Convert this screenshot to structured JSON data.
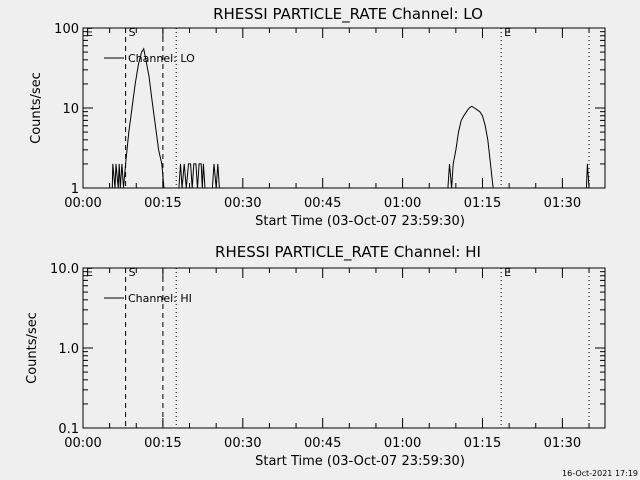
{
  "chart_data": [
    {
      "type": "line",
      "title": "RHESSI PARTICLE_RATE Channel: LO",
      "xlabel": "Start Time (03-Oct-07 23:59:30)",
      "ylabel": "Counts/sec",
      "yscale": "log",
      "ylim": [
        1,
        100
      ],
      "xlim_minutes": [
        0,
        98
      ],
      "x_ticks": [
        "00:00",
        "00:15",
        "00:30",
        "00:45",
        "01:00",
        "01:15",
        "01:30"
      ],
      "y_ticks": [
        "1",
        "10",
        "100"
      ],
      "legend": {
        "label": "Channel: LO",
        "position": "top-left"
      },
      "markers": [
        {
          "label": "E",
          "style": "dotted",
          "x_minutes": 0.0
        },
        {
          "label": "S",
          "style": "dashed",
          "x_minutes": 8.0
        },
        {
          "label": "",
          "style": "dashed",
          "x_minutes": 15.0
        },
        {
          "label": "",
          "style": "dotted",
          "x_minutes": 17.5
        },
        {
          "label": "E",
          "style": "dotted",
          "x_minutes": 78.5
        },
        {
          "label": "",
          "style": "dotted",
          "x_minutes": 95.0
        }
      ],
      "series": [
        {
          "name": "Channel: LO",
          "points": [
            [
              5.5,
              1
            ],
            [
              5.6,
              2
            ],
            [
              6.0,
              1
            ],
            [
              6.2,
              2
            ],
            [
              6.6,
              1
            ],
            [
              6.8,
              2
            ],
            [
              7.0,
              1
            ],
            [
              7.3,
              2
            ],
            [
              7.6,
              1
            ],
            [
              8.0,
              2
            ],
            [
              8.6,
              5
            ],
            [
              9.2,
              10
            ],
            [
              9.8,
              20
            ],
            [
              10.4,
              35
            ],
            [
              11.0,
              50
            ],
            [
              11.4,
              55
            ],
            [
              11.8,
              40
            ],
            [
              12.4,
              25
            ],
            [
              13.0,
              12
            ],
            [
              13.6,
              6
            ],
            [
              14.2,
              3
            ],
            [
              14.8,
              2
            ],
            [
              15.2,
              1
            ],
            [
              18.0,
              1
            ],
            [
              18.3,
              2
            ],
            [
              18.6,
              1
            ],
            [
              19.0,
              2
            ],
            [
              19.4,
              1
            ],
            [
              19.8,
              2
            ],
            [
              20.2,
              2
            ],
            [
              20.5,
              1
            ],
            [
              20.8,
              2
            ],
            [
              21.2,
              2
            ],
            [
              21.5,
              1
            ],
            [
              21.8,
              2
            ],
            [
              22.2,
              2
            ],
            [
              22.4,
              1
            ],
            [
              22.6,
              2
            ],
            [
              22.9,
              1
            ],
            [
              23.2,
              1
            ],
            [
              24.3,
              1
            ],
            [
              24.6,
              2
            ],
            [
              25.0,
              1
            ],
            [
              25.3,
              2
            ],
            [
              25.6,
              1
            ],
            [
              68.5,
              1
            ],
            [
              68.8,
              2
            ],
            [
              69.2,
              1
            ],
            [
              69.5,
              2
            ],
            [
              70.0,
              3
            ],
            [
              70.5,
              5
            ],
            [
              71.0,
              7
            ],
            [
              71.5,
              8
            ],
            [
              72.0,
              9
            ],
            [
              72.5,
              10
            ],
            [
              73.0,
              10.5
            ],
            [
              73.5,
              10
            ],
            [
              74.0,
              9.5
            ],
            [
              74.5,
              9
            ],
            [
              75.0,
              8
            ],
            [
              75.5,
              6
            ],
            [
              76.0,
              4
            ],
            [
              76.5,
              2
            ],
            [
              77.0,
              1
            ],
            [
              94.5,
              1
            ],
            [
              94.7,
              2
            ],
            [
              95.0,
              1
            ]
          ]
        }
      ]
    },
    {
      "type": "line",
      "title": "RHESSI PARTICLE_RATE Channel: HI",
      "xlabel": "Start Time (03-Oct-07 23:59:30)",
      "ylabel": "Counts/sec",
      "yscale": "log",
      "ylim": [
        0.1,
        10
      ],
      "xlim_minutes": [
        0,
        98
      ],
      "x_ticks": [
        "00:00",
        "00:15",
        "00:30",
        "00:45",
        "01:00",
        "01:15",
        "01:30"
      ],
      "y_ticks": [
        "0.1",
        "1.0",
        "10.0"
      ],
      "legend": {
        "label": "Channel: HI",
        "position": "top-left"
      },
      "markers": [
        {
          "label": "E",
          "style": "dotted",
          "x_minutes": 0.0
        },
        {
          "label": "S",
          "style": "dashed",
          "x_minutes": 8.0
        },
        {
          "label": "",
          "style": "dashed",
          "x_minutes": 15.0
        },
        {
          "label": "",
          "style": "dotted",
          "x_minutes": 17.5
        },
        {
          "label": "E",
          "style": "dotted",
          "x_minutes": 78.5
        },
        {
          "label": "",
          "style": "dotted",
          "x_minutes": 95.0
        }
      ],
      "series": [
        {
          "name": "Channel: HI",
          "points": []
        }
      ]
    }
  ],
  "footer": {
    "timestamp": "16-Oct-2021 17:19"
  }
}
